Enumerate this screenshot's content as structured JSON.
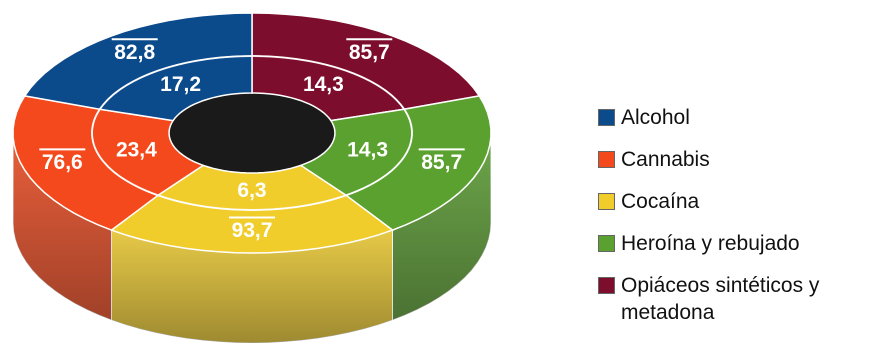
{
  "chart_data": {
    "type": "pie",
    "variant": "3d-nested-donut",
    "title": "",
    "categories": [
      "Alcohol",
      "Cannabis",
      "Cocaína",
      "Heroína y rebujado",
      "Opiáceos sintéticos y metadona"
    ],
    "colors": {
      "Alcohol": "#0b4a8b",
      "Cannabis": "#f4491c",
      "Cocaína": "#f1cd2b",
      "Heroína y rebujado": "#5aa12f",
      "Opiáceos sintéticos y metadona": "#7d0d2c"
    },
    "inner_ring": {
      "values": [
        17.2,
        23.4,
        6.3,
        14.3,
        14.3
      ],
      "labels": [
        "17,2",
        "23,4",
        "6,3",
        "14,3",
        "14,3"
      ]
    },
    "outer_ring": {
      "values": [
        82.8,
        76.6,
        93.7,
        85.7,
        85.7
      ],
      "labels": [
        "82,8",
        "76,6",
        "93,7",
        "85,7",
        "85,7"
      ],
      "overline": true
    },
    "legend": {
      "position": "right",
      "items": [
        "Alcohol",
        "Cannabis",
        "Cocaína",
        "Heroína y rebujado",
        "Opiáceos sintéticos y metadona"
      ]
    }
  }
}
